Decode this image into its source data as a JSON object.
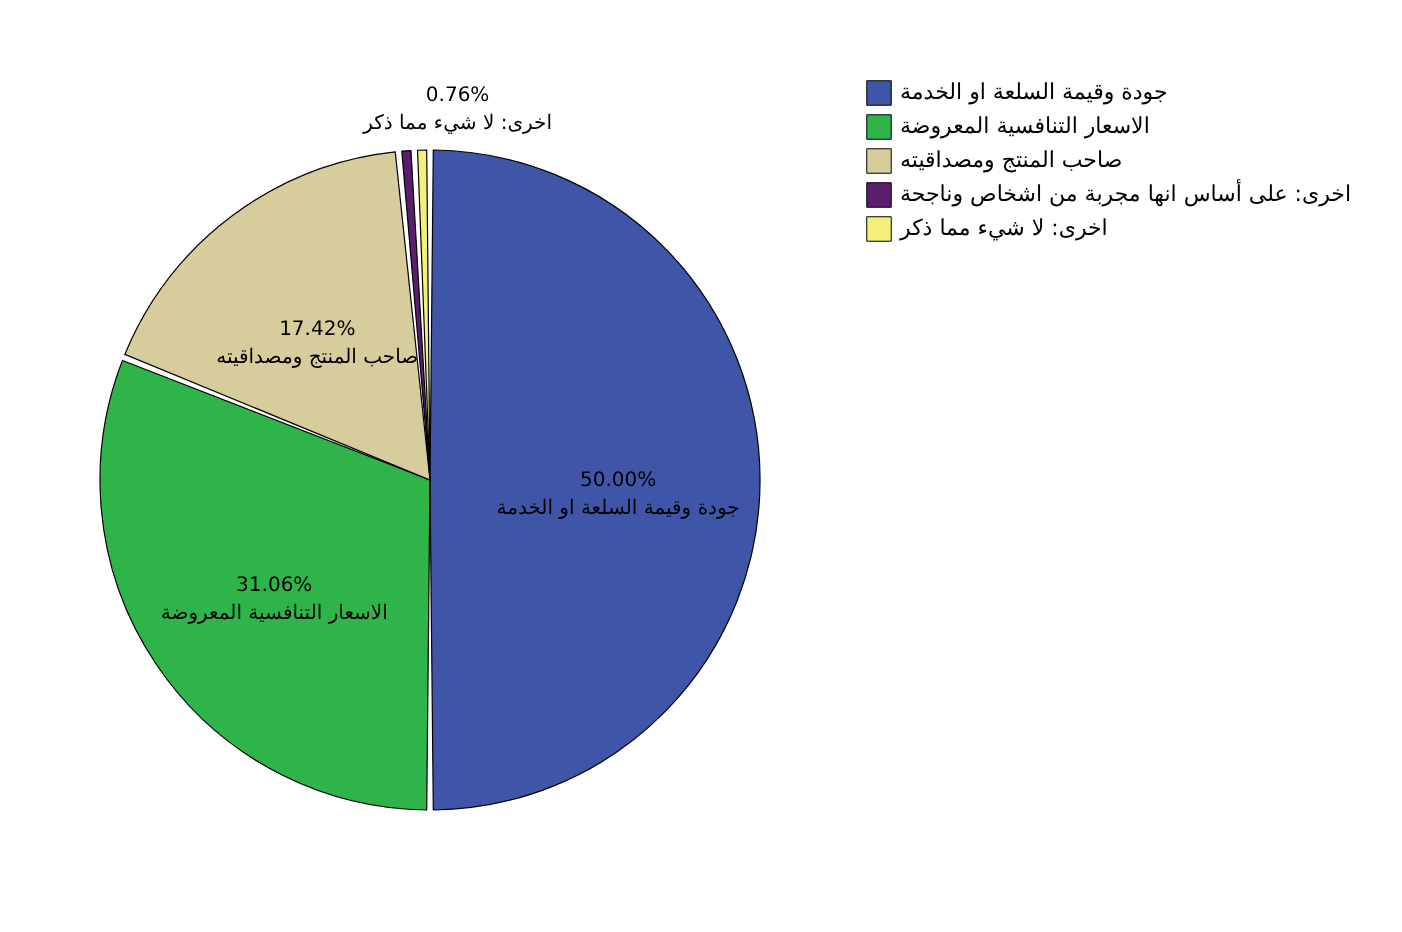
{
  "chart_data": {
    "type": "pie",
    "categories": [
      "جودة وقيمة السلعة او الخدمة",
      "الاسعار التنافسية المعروضة",
      "صاحب المنتج ومصداقيته",
      "اخرى: على أساس انها مجربة من اشخاص وناجحة",
      "اخرى: لا شيء مما ذكر"
    ],
    "values": [
      50.0,
      31.06,
      17.42,
      0.76,
      0.76
    ],
    "colors": [
      "#3f56a8",
      "#2fb44a",
      "#d6cc9c",
      "#5c1d6e",
      "#f5f07a"
    ],
    "value_labels": [
      "50.00%",
      "31.06%",
      "17.42%",
      null,
      "0.76%"
    ],
    "legend": "top right"
  }
}
